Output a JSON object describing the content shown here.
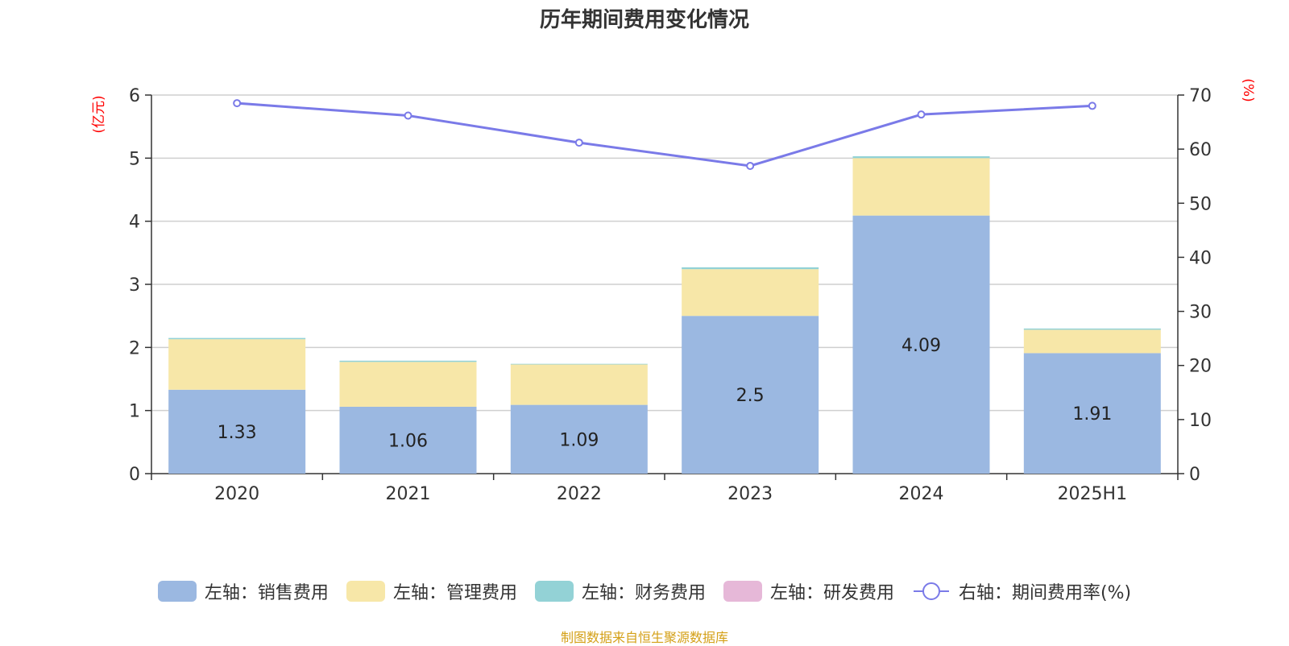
{
  "title": "历年期间费用变化情况",
  "source": "制图数据来自恒生聚源数据库",
  "chart_data": {
    "type": "bar",
    "stacked": true,
    "categories": [
      "2020",
      "2021",
      "2022",
      "2023",
      "2024",
      "2025H1"
    ],
    "left_axis": {
      "unit_label": "(亿元)",
      "ylim": [
        0,
        6
      ],
      "ticks": [
        0,
        1,
        2,
        3,
        4,
        5,
        6
      ]
    },
    "right_axis": {
      "unit_label": "(%)",
      "ylim": [
        0,
        70
      ],
      "ticks": [
        0,
        10,
        20,
        30,
        40,
        50,
        60,
        70
      ]
    },
    "series": [
      {
        "name": "左轴：销售费用",
        "axis": "left",
        "color": "#9bb8e1",
        "values": [
          1.33,
          1.06,
          1.09,
          2.5,
          4.09,
          1.91
        ],
        "labels": [
          "1.33",
          "1.06",
          "1.09",
          "2.5",
          "4.09",
          "1.91"
        ]
      },
      {
        "name": "左轴：管理费用",
        "axis": "left",
        "color": "#f7e7a8",
        "values": [
          0.8,
          0.71,
          0.64,
          0.74,
          0.91,
          0.37
        ]
      },
      {
        "name": "左轴：财务费用",
        "axis": "left",
        "color": "#93d2d6",
        "values": [
          0.02,
          0.02,
          0.01,
          0.03,
          0.03,
          0.02
        ]
      },
      {
        "name": "左轴：研发费用",
        "axis": "left",
        "color": "#e6b8d8",
        "values": [
          0,
          0,
          0,
          0,
          0,
          0
        ]
      },
      {
        "name": "右轴：期间费用率(%)",
        "axis": "right",
        "type": "line",
        "color": "#7a7ae8",
        "values": [
          68.5,
          66.2,
          61.2,
          56.9,
          66.4,
          68.0
        ]
      }
    ]
  }
}
